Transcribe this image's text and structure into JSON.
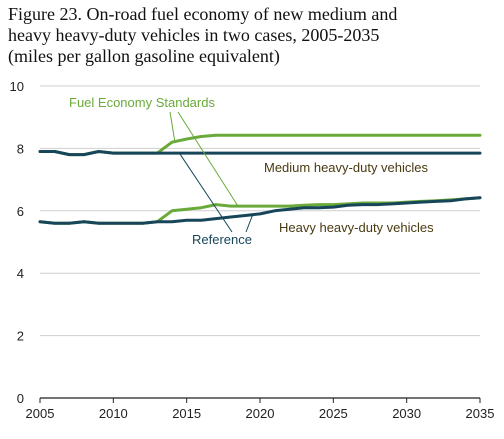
{
  "title_lines": [
    "Figure 23. On-road fuel economy of new medium and",
    "heavy heavy-duty vehicles in two cases, 2005-2035",
    "(miles per gallon gasoline equivalent)"
  ],
  "chart_data": {
    "type": "line",
    "title": "Figure 23. On-road fuel economy of new medium and heavy heavy-duty vehicles in two cases, 2005-2035 (miles per gallon gasoline equivalent)",
    "xlabel": "",
    "ylabel": "",
    "xlim": [
      2005,
      2035
    ],
    "ylim": [
      0,
      10
    ],
    "xticks": [
      2005,
      2010,
      2015,
      2020,
      2025,
      2030,
      2035
    ],
    "yticks": [
      0,
      2,
      4,
      6,
      8,
      10
    ],
    "grid": "horizontal",
    "x": [
      2005,
      2006,
      2007,
      2008,
      2009,
      2010,
      2011,
      2012,
      2013,
      2014,
      2015,
      2016,
      2017,
      2018,
      2019,
      2020,
      2021,
      2022,
      2023,
      2024,
      2025,
      2026,
      2027,
      2028,
      2029,
      2030,
      2031,
      2032,
      2033,
      2034,
      2035
    ],
    "series": [
      {
        "name": "Fuel Economy Standards",
        "vehicle": "Medium heavy-duty vehicles",
        "color": "#6aaa3a",
        "values": [
          7.9,
          7.9,
          7.8,
          7.8,
          7.9,
          7.85,
          7.85,
          7.85,
          7.85,
          8.2,
          8.3,
          8.38,
          8.42,
          8.42,
          8.42,
          8.42,
          8.42,
          8.42,
          8.42,
          8.42,
          8.42,
          8.42,
          8.42,
          8.42,
          8.42,
          8.42,
          8.42,
          8.42,
          8.42,
          8.42,
          8.42
        ]
      },
      {
        "name": "Reference",
        "vehicle": "Medium heavy-duty vehicles",
        "color": "#17465a",
        "values": [
          7.9,
          7.9,
          7.8,
          7.8,
          7.9,
          7.85,
          7.85,
          7.85,
          7.85,
          7.85,
          7.85,
          7.85,
          7.85,
          7.85,
          7.85,
          7.85,
          7.85,
          7.85,
          7.85,
          7.85,
          7.85,
          7.85,
          7.85,
          7.85,
          7.85,
          7.85,
          7.85,
          7.85,
          7.85,
          7.85,
          7.85
        ]
      },
      {
        "name": "Fuel Economy Standards",
        "vehicle": "Heavy heavy-duty vehicles",
        "color": "#6aaa3a",
        "values": [
          5.65,
          5.6,
          5.6,
          5.65,
          5.6,
          5.6,
          5.6,
          5.6,
          5.65,
          6.0,
          6.05,
          6.1,
          6.2,
          6.15,
          6.15,
          6.15,
          6.15,
          6.15,
          6.18,
          6.2,
          6.2,
          6.22,
          6.25,
          6.25,
          6.25,
          6.28,
          6.3,
          6.32,
          6.35,
          6.38,
          6.42
        ]
      },
      {
        "name": "Reference",
        "vehicle": "Heavy heavy-duty vehicles",
        "color": "#17465a",
        "values": [
          5.65,
          5.6,
          5.6,
          5.65,
          5.6,
          5.6,
          5.6,
          5.6,
          5.65,
          5.65,
          5.7,
          5.7,
          5.75,
          5.8,
          5.85,
          5.9,
          6.0,
          6.05,
          6.1,
          6.1,
          6.12,
          6.18,
          6.2,
          6.2,
          6.22,
          6.25,
          6.28,
          6.3,
          6.32,
          6.38,
          6.42
        ]
      }
    ],
    "annotations": [
      {
        "text": "Fuel Economy Standards",
        "color": "#6aaa3a"
      },
      {
        "text": "Reference",
        "color": "#17465a"
      },
      {
        "text": "Medium heavy-duty vehicles",
        "color": "#4a3a12"
      },
      {
        "text": "Heavy heavy-duty vehicles",
        "color": "#4a3a12"
      }
    ]
  }
}
